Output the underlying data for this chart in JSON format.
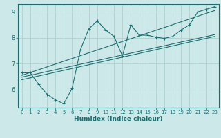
{
  "xlabel": "Humidex (Indice chaleur)",
  "bg_color": "#cce8e8",
  "line_color": "#1a7070",
  "grid_color": "#aacccc",
  "xlim": [
    -0.5,
    23.5
  ],
  "ylim": [
    5.3,
    9.3
  ],
  "xticks": [
    0,
    1,
    2,
    3,
    4,
    5,
    6,
    7,
    8,
    9,
    10,
    11,
    12,
    13,
    14,
    15,
    16,
    17,
    18,
    19,
    20,
    21,
    22,
    23
  ],
  "yticks": [
    6,
    7,
    8,
    9
  ],
  "zigzag": {
    "x": [
      0,
      1,
      2,
      3,
      4,
      5,
      6,
      7,
      8,
      9,
      10,
      11,
      12,
      13,
      14,
      15,
      16,
      17,
      18,
      19,
      20,
      21,
      22,
      23
    ],
    "y": [
      6.65,
      6.65,
      6.2,
      5.82,
      5.6,
      5.45,
      6.05,
      7.55,
      8.35,
      8.65,
      8.3,
      8.05,
      7.3,
      8.5,
      8.1,
      8.1,
      8.02,
      7.98,
      8.05,
      8.3,
      8.5,
      9.0,
      9.1,
      9.2
    ]
  },
  "trend_lines": [
    {
      "x": [
        0,
        23
      ],
      "y": [
        6.55,
        9.05
      ]
    },
    {
      "x": [
        0,
        23
      ],
      "y": [
        6.38,
        8.05
      ]
    },
    {
      "x": [
        0,
        23
      ],
      "y": [
        6.48,
        8.12
      ]
    }
  ]
}
